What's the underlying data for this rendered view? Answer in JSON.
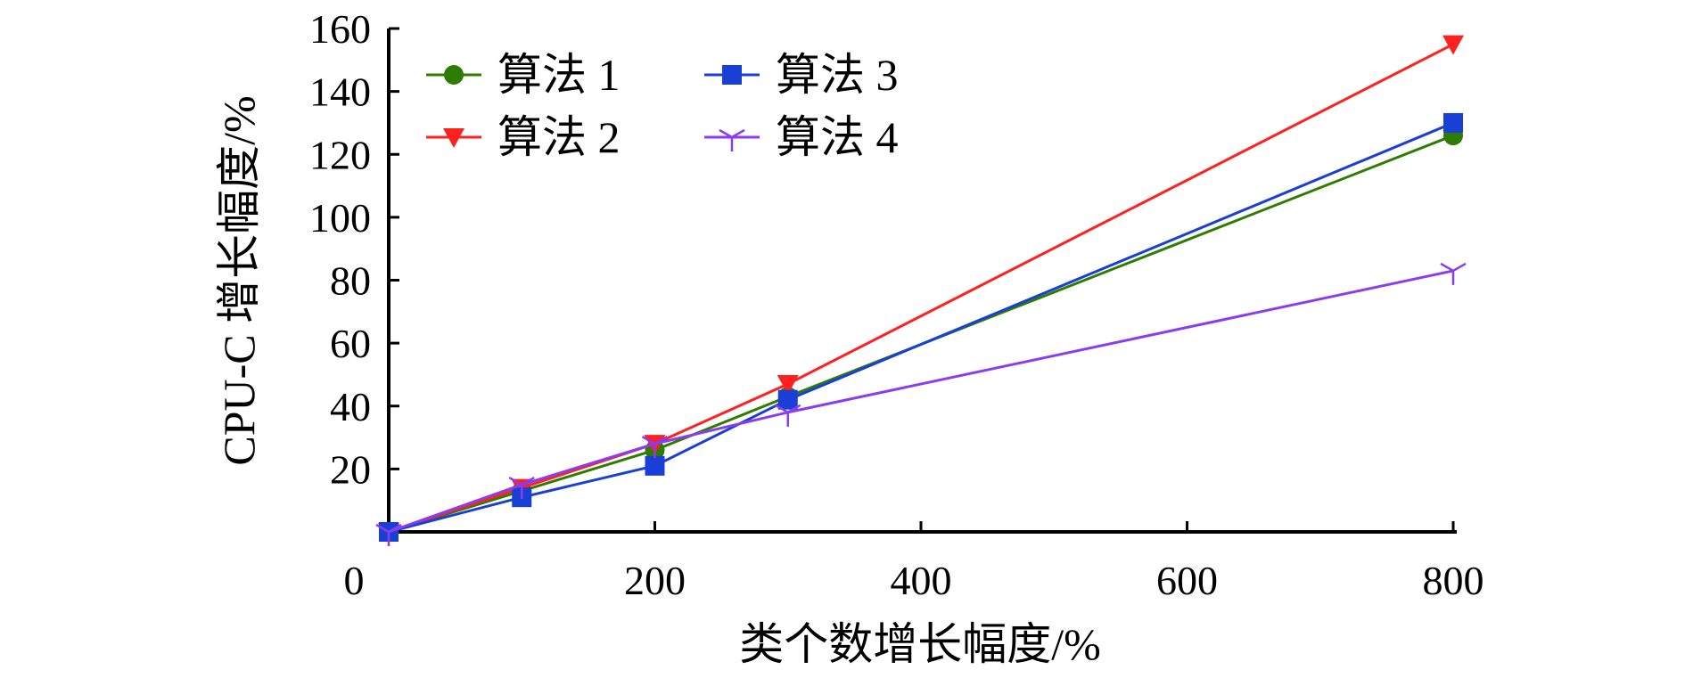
{
  "chart_data": {
    "type": "line",
    "xlabel": "类个数增长幅度/%",
    "ylabel": "CPU-C 增长幅度/%",
    "xlim": [
      0,
      800
    ],
    "ylim": [
      0,
      160
    ],
    "x_ticks": [
      "0",
      "200",
      "400",
      "600",
      "800"
    ],
    "y_ticks": [
      "20",
      "40",
      "60",
      "80",
      "100",
      "120",
      "140",
      "160"
    ],
    "x": [
      0,
      100,
      200,
      300,
      800
    ],
    "series": [
      {
        "name": "算法 1",
        "marker": "circle",
        "color": "#2e7d00",
        "values": [
          0,
          13,
          26,
          43,
          126
        ]
      },
      {
        "name": "算法 2",
        "marker": "triangle-down",
        "color": "#ff2020",
        "values": [
          0,
          14,
          28,
          47,
          155
        ]
      },
      {
        "name": "算法 3",
        "marker": "square",
        "color": "#1a3fd6",
        "values": [
          0,
          11,
          21,
          42,
          130
        ]
      },
      {
        "name": "算法 4",
        "marker": "tri",
        "color": "#8a3cf0",
        "values": [
          0,
          15,
          28,
          38,
          83
        ]
      }
    ],
    "grid": false,
    "legend_position": "top-left"
  }
}
